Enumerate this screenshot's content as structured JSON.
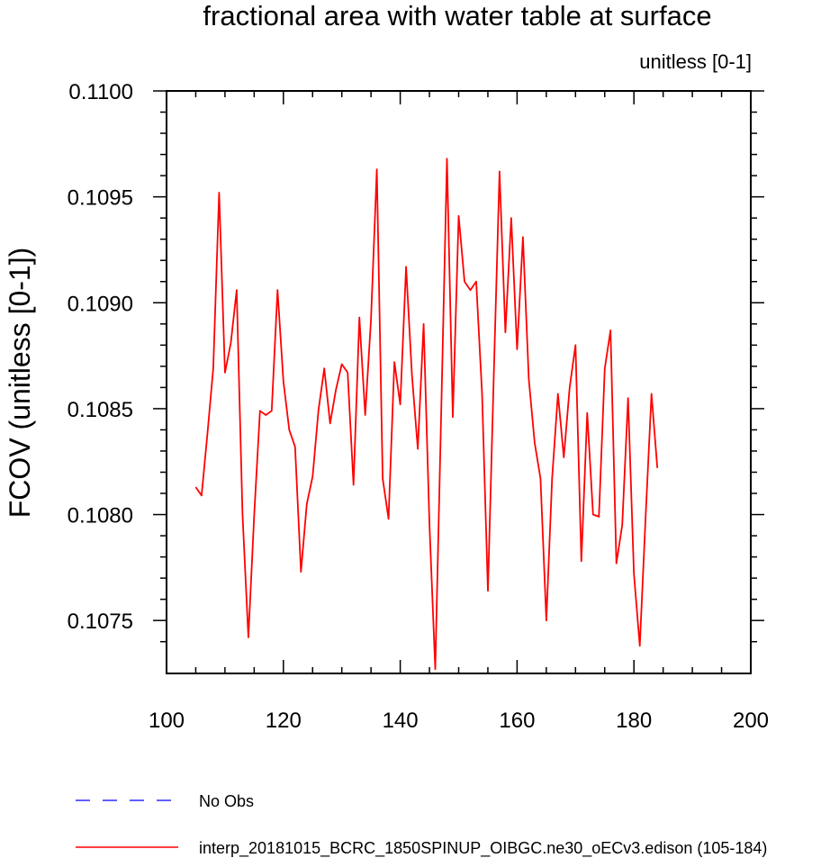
{
  "chart_data": {
    "type": "line",
    "title": "fractional area with water table at surface",
    "units_label": "unitless [0-1]",
    "xlabel": "",
    "ylabel": "FCOV  (unitless [0-1])",
    "xlim": [
      100,
      200
    ],
    "ylim": [
      0.10725,
      0.11
    ],
    "x_ticks": [
      100,
      120,
      140,
      160,
      180,
      200
    ],
    "x_tick_labels": [
      "100",
      "120",
      "140",
      "160",
      "180",
      "200"
    ],
    "y_ticks": [
      0.1075,
      0.108,
      0.1085,
      0.109,
      0.1095,
      0.11
    ],
    "y_tick_labels": [
      "0.1075",
      "0.1080",
      "0.1085",
      "0.1090",
      "0.1095",
      "0.1100"
    ],
    "series": [
      {
        "name": "interp_20181015_BCRC_1850SPINUP_OIBGC.ne30_oECv3.edison (105-184)",
        "color": "#ff0000",
        "x": [
          105,
          106,
          107,
          108,
          109,
          110,
          111,
          112,
          113,
          114,
          115,
          116,
          117,
          118,
          119,
          120,
          121,
          122,
          123,
          124,
          125,
          126,
          127,
          128,
          129,
          130,
          131,
          132,
          133,
          134,
          135,
          136,
          137,
          138,
          139,
          140,
          141,
          142,
          143,
          144,
          145,
          146,
          147,
          148,
          149,
          150,
          151,
          152,
          153,
          154,
          155,
          156,
          157,
          158,
          159,
          160,
          161,
          162,
          163,
          164,
          165,
          166,
          167,
          168,
          169,
          170,
          171,
          172,
          173,
          174,
          175,
          176,
          177,
          178,
          179,
          180,
          181,
          182,
          183,
          184
        ],
        "values": [
          0.10813,
          0.10809,
          0.10838,
          0.10869,
          0.10952,
          0.10867,
          0.10881,
          0.10906,
          0.108,
          0.10742,
          0.108,
          0.10849,
          0.10847,
          0.10849,
          0.10906,
          0.10863,
          0.1084,
          0.10832,
          0.10773,
          0.10805,
          0.10818,
          0.10849,
          0.10869,
          0.10843,
          0.10859,
          0.10871,
          0.10867,
          0.10814,
          0.10893,
          0.10847,
          0.10892,
          0.10963,
          0.10817,
          0.10798,
          0.10872,
          0.10852,
          0.10917,
          0.10866,
          0.10831,
          0.1089,
          0.10795,
          0.10727,
          0.10846,
          0.10968,
          0.10846,
          0.10941,
          0.1091,
          0.10906,
          0.1091,
          0.10857,
          0.10764,
          0.10864,
          0.10962,
          0.10886,
          0.1094,
          0.10878,
          0.10931,
          0.10864,
          0.10834,
          0.10817,
          0.1075,
          0.10817,
          0.10857,
          0.10827,
          0.1086,
          0.1088,
          0.10778,
          0.10848,
          0.108,
          0.10799,
          0.10869,
          0.10887,
          0.10777,
          0.10795,
          0.10855,
          0.10772,
          0.10738,
          0.10799,
          0.10857,
          0.10822
        ]
      }
    ],
    "legend": [
      {
        "label": "No Obs",
        "color": "#0000ff",
        "style": "dashed"
      },
      {
        "label": "interp_20181015_BCRC_1850SPINUP_OIBGC.ne30_oECv3.edison (105-184)",
        "color": "#ff0000",
        "style": "solid"
      }
    ],
    "legend_position": "bottom"
  }
}
